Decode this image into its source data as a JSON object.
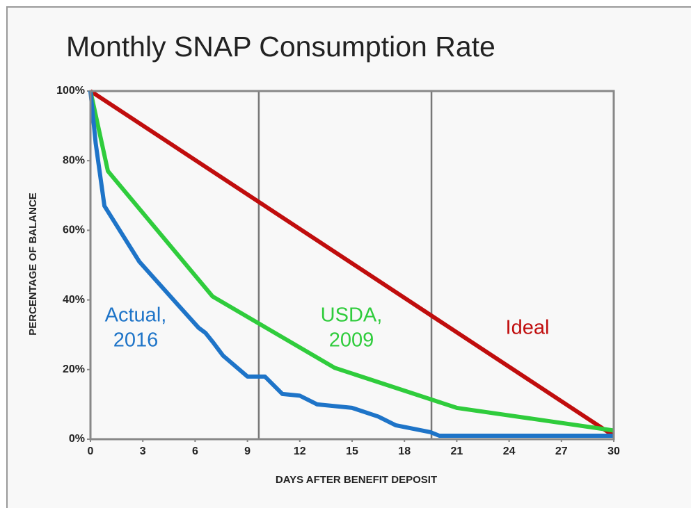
{
  "chart_data": {
    "type": "line",
    "title": "Monthly SNAP Consumption Rate",
    "x_label": "DAYS AFTER BENEFIT DEPOSIT",
    "y_label": "PERCENTAGE OF BALANCE",
    "xlim": [
      0,
      30
    ],
    "ylim": [
      0,
      100
    ],
    "xticks": [
      0,
      3,
      6,
      9,
      12,
      15,
      18,
      21,
      24,
      27,
      30
    ],
    "yticks": [
      {
        "value": 0,
        "label": "0%"
      },
      {
        "value": 20,
        "label": "20%"
      },
      {
        "value": 40,
        "label": "40%"
      },
      {
        "value": 60,
        "label": "60%"
      },
      {
        "value": 80,
        "label": "80%"
      },
      {
        "value": 100,
        "label": "100%"
      }
    ],
    "xlines": [
      9.65,
      19.55
    ],
    "series": [
      {
        "name": "Ideal",
        "label_lines": [
          "Ideal"
        ],
        "color": "#c00d0d",
        "x": [
          0,
          30
        ],
        "values": [
          100,
          1
        ]
      },
      {
        "name": "USDA, 2009",
        "label_lines": [
          "USDA,",
          "2009"
        ],
        "color": "#2fcc3c",
        "x": [
          0,
          1,
          7,
          14,
          21,
          30
        ],
        "values": [
          100,
          77,
          41,
          20.5,
          9,
          2.5
        ]
      },
      {
        "name": "Actual, 2016",
        "label_lines": [
          "Actual,",
          "2016"
        ],
        "color": "#1e74c8",
        "x": [
          0,
          0.3,
          0.8,
          2.8,
          5.3,
          6.2,
          6.6,
          7,
          7.6,
          9,
          10,
          11,
          12,
          13,
          15,
          16.5,
          17.5,
          19.5,
          20,
          30
        ],
        "values": [
          100,
          85,
          67,
          51,
          37,
          32,
          30.5,
          28,
          24,
          18,
          18,
          13,
          12.5,
          10,
          9,
          6.5,
          4,
          2,
          1,
          1
        ]
      }
    ]
  }
}
